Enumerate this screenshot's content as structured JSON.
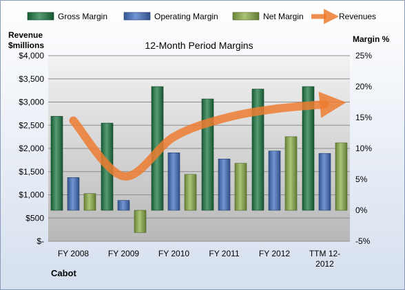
{
  "chart_data": {
    "type": "bar",
    "title": "12-Month Period Margins",
    "company": "Cabot",
    "y_left_label_line1": "Revenue",
    "y_left_label_line2": "$millions",
    "y_right_label": "Margin %",
    "categories": [
      "FY 2008",
      "FY 2009",
      "FY 2010",
      "FY 2011",
      "FY 2012",
      "TTM 12-2012"
    ],
    "category_label_lines": [
      [
        "FY 2008"
      ],
      [
        "FY 2009"
      ],
      [
        "FY 2010"
      ],
      [
        "FY 2011"
      ],
      [
        "FY 2012"
      ],
      [
        "TTM 12-",
        "2012"
      ]
    ],
    "left_axis": {
      "min": 0,
      "max": 4000,
      "step": 500,
      "tick_labels": [
        "$-",
        "$500",
        "$1,000",
        "$1,500",
        "$2,000",
        "$2,500",
        "$3,000",
        "$3,500",
        "$4,000"
      ]
    },
    "right_axis": {
      "min": -5,
      "max": 25,
      "step": 5,
      "tick_labels": [
        "-5%",
        "0%",
        "5%",
        "10%",
        "15%",
        "20%",
        "25%"
      ]
    },
    "bar_series": [
      {
        "name": "Gross Margin",
        "axis": "right",
        "color": "#1f7a45",
        "values": [
          15.2,
          14.1,
          20.0,
          18.0,
          19.6,
          20.0
        ]
      },
      {
        "name": "Operating Margin",
        "axis": "right",
        "color": "#4472c4",
        "values": [
          5.3,
          1.6,
          9.3,
          8.3,
          9.6,
          9.2
        ]
      },
      {
        "name": "Net Margin",
        "axis": "right",
        "color": "#8db04a",
        "values": [
          2.7,
          -3.6,
          5.8,
          7.6,
          11.9,
          10.9
        ]
      }
    ],
    "line_series": {
      "name": "Revenues",
      "axis": "left",
      "color": "#ed7d31",
      "values": [
        2600,
        1400,
        2250,
        2650,
        2850,
        2950
      ]
    },
    "grid": true,
    "legend_position": "top"
  }
}
